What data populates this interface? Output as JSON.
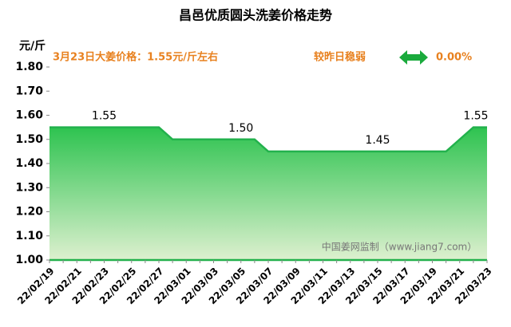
{
  "chart_data": {
    "type": "area",
    "title": "昌邑优质圆头洗姜价格走势",
    "y_unit": "元/斤",
    "annotation": "3月23日大姜价格：1.55元/斤左右",
    "change_text": "较昨日稳弱",
    "change_value": "0.00%",
    "watermark": "中国姜网监制（www.jiang7.com）",
    "categories": [
      "22/02/19",
      null,
      "22/02/21",
      null,
      "22/02/23",
      null,
      "22/02/25",
      null,
      "22/02/27",
      null,
      "22/03/01",
      null,
      "22/03/03",
      null,
      "22/03/05",
      null,
      "22/03/07",
      null,
      "22/03/09",
      null,
      "22/03/11",
      null,
      "22/03/13",
      null,
      "22/03/15",
      null,
      "22/03/17",
      null,
      "22/03/19",
      null,
      "22/03/21",
      null,
      "22/03/23"
    ],
    "values": [
      1.55,
      1.55,
      1.55,
      1.55,
      1.55,
      1.55,
      1.55,
      1.55,
      1.55,
      1.5,
      1.5,
      1.5,
      1.5,
      1.5,
      1.5,
      1.5,
      1.45,
      1.45,
      1.45,
      1.45,
      1.45,
      1.45,
      1.45,
      1.45,
      1.45,
      1.45,
      1.45,
      1.45,
      1.45,
      1.45,
      1.5,
      1.55,
      1.55
    ],
    "value_labels": [
      null,
      null,
      null,
      null,
      "1.55",
      null,
      null,
      null,
      null,
      null,
      null,
      null,
      null,
      null,
      "1.50",
      null,
      null,
      null,
      null,
      null,
      null,
      null,
      null,
      null,
      "1.45",
      null,
      null,
      null,
      null,
      null,
      null,
      null,
      "1.55"
    ],
    "color": "#22b14c",
    "ylim": [
      1.0,
      1.8
    ],
    "yticks": [
      {
        "value": 1.0,
        "label": "1.00"
      },
      {
        "value": 1.1,
        "label": "1.10"
      },
      {
        "value": 1.2,
        "label": "1.20"
      },
      {
        "value": 1.3,
        "label": "1.30"
      },
      {
        "value": 1.4,
        "label": "1.40"
      },
      {
        "value": 1.5,
        "label": "1.50"
      },
      {
        "value": 1.6,
        "label": "1.60"
      },
      {
        "value": 1.7,
        "label": "1.70"
      },
      {
        "value": 1.8,
        "label": "1.80"
      }
    ]
  }
}
